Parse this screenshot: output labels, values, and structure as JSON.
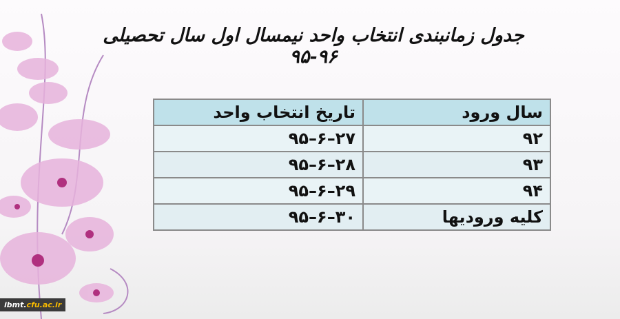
{
  "slide": {
    "title": "جدول زمانبندی انتخاب واحد نیمسال اول سال تحصیلی ۹۶-۹۵",
    "table": {
      "headers": [
        "سال ورود",
        "تاریخ انتخاب واحد"
      ],
      "rows": [
        {
          "entry_year": "۹۲",
          "date": "۹۵–۶–۲۷"
        },
        {
          "entry_year": "۹۳",
          "date": "۹۵–۶–۲۸"
        },
        {
          "entry_year": "۹۴",
          "date": "۹۵–۶–۲۹"
        },
        {
          "entry_year": "کلیه ورودیها",
          "date": "۹۵–۶–۳۰"
        }
      ]
    }
  },
  "watermark": {
    "prefix": "ibmt.",
    "highlight": "cfu.ac.ir"
  },
  "colors": {
    "header_bg": "#bfe1ea",
    "row_bg": "#e9f3f6",
    "flower": "#d88ac8"
  }
}
